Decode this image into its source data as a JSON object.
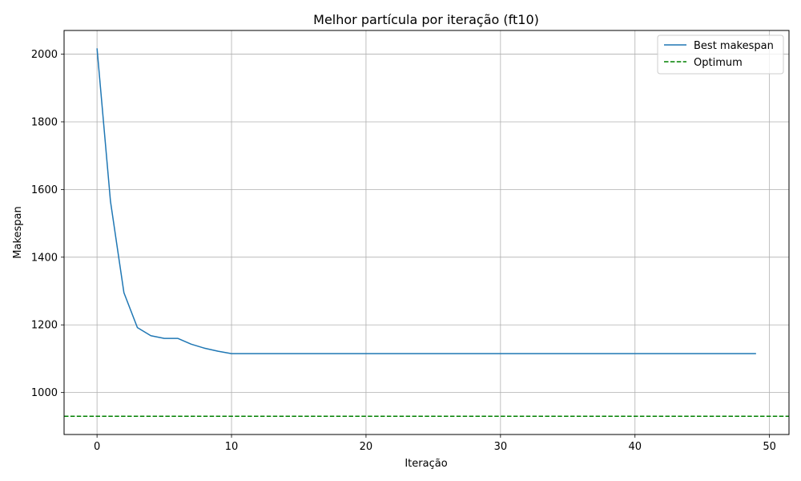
{
  "chart_data": {
    "type": "line",
    "title": "Melhor partícula por iteração (ft10)",
    "xlabel": "Iteração",
    "ylabel": "Makespan",
    "xlim": [
      -2.45,
      51.45
    ],
    "ylim": [
      876,
      2070
    ],
    "x_ticks": [
      0,
      10,
      20,
      30,
      40,
      50
    ],
    "y_ticks": [
      1000,
      1200,
      1400,
      1600,
      1800,
      2000
    ],
    "grid": true,
    "legend_position": "top-right",
    "series": [
      {
        "name": "Best makespan",
        "color": "#1f77b4",
        "style": "solid",
        "x": [
          0,
          1,
          2,
          3,
          4,
          5,
          6,
          7,
          8,
          9,
          10,
          11,
          12,
          13,
          14,
          15,
          16,
          17,
          18,
          19,
          20,
          21,
          22,
          23,
          24,
          25,
          26,
          27,
          28,
          29,
          30,
          31,
          32,
          33,
          34,
          35,
          36,
          37,
          38,
          39,
          40,
          41,
          42,
          43,
          44,
          45,
          46,
          47,
          48,
          49
        ],
        "values": [
          2017,
          1565,
          1295,
          1192,
          1168,
          1160,
          1160,
          1143,
          1131,
          1122,
          1115,
          1115,
          1115,
          1115,
          1115,
          1115,
          1115,
          1115,
          1115,
          1115,
          1115,
          1115,
          1115,
          1115,
          1115,
          1115,
          1115,
          1115,
          1115,
          1115,
          1115,
          1115,
          1115,
          1115,
          1115,
          1115,
          1115,
          1115,
          1115,
          1115,
          1115,
          1115,
          1115,
          1115,
          1115,
          1115,
          1115,
          1115,
          1115,
          1115
        ]
      }
    ],
    "reference_lines": [
      {
        "name": "Optimum",
        "y": 930,
        "color": "#008000",
        "style": "dashed"
      }
    ]
  }
}
